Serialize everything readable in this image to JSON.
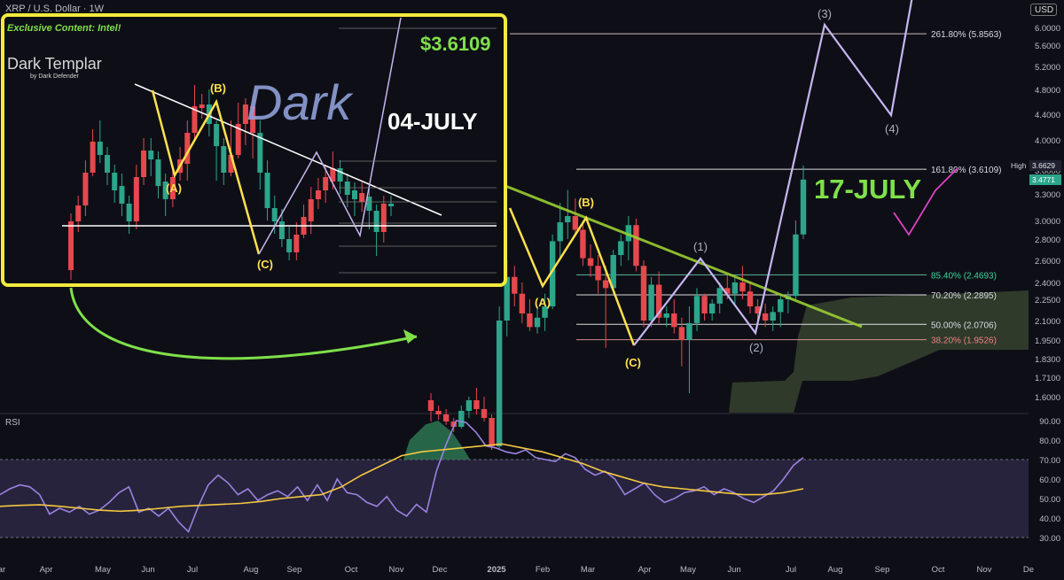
{
  "chart_data": {
    "type": "candlestick",
    "symbol": "XRP / U.S. Dollar · 1W",
    "currency_button": "USD",
    "watermark": {
      "line1": "Exclusive Content: Intel!",
      "line2": "Dark Templar",
      "line3": "by Dark Defender"
    },
    "price_axis": [
      "6.0000",
      "5.6000",
      "5.2000",
      "4.8000",
      "4.4000",
      "4.0000",
      "3.6000",
      "3.3000",
      "3.0000",
      "2.8000",
      "2.6000",
      "2.4000",
      "2.2500",
      "2.1000",
      "1.9500",
      "1.8300",
      "1.7100",
      "1.6000"
    ],
    "time_axis": [
      "ar",
      "Apr",
      "May",
      "Jun",
      "Jul",
      "Aug",
      "Sep",
      "Oct",
      "Nov",
      "Dec",
      "2025",
      "Feb",
      "Mar",
      "Apr",
      "May",
      "Jun",
      "Jul",
      "Aug",
      "Sep",
      "Oct",
      "Nov",
      "De"
    ],
    "high_badge": {
      "label": "High",
      "value": "3.6629"
    },
    "last_price": "3.4771",
    "fib_levels": [
      {
        "label": "261.80% (5.8563)",
        "price": 5.8563
      },
      {
        "label": "161.80% (3.6109)",
        "price": 3.6109
      },
      {
        "label": "85.40% (2.4693)",
        "price": 2.4693
      },
      {
        "label": "70.20% (2.2895)",
        "price": 2.2895
      },
      {
        "label": "50.00% (2.0706)",
        "price": 2.0706
      },
      {
        "label": "38.20% (1.9526)",
        "price": 1.9526
      }
    ],
    "wave_labels": [
      "(A)",
      "(B)",
      "(C)",
      "(1)",
      "(2)",
      "(3)",
      "(4)"
    ],
    "annotations": {
      "target": "17-JULY"
    },
    "candles": [
      {
        "o": 1.58,
        "h": 1.62,
        "l": 1.46,
        "c": 1.52
      },
      {
        "o": 1.52,
        "h": 1.55,
        "l": 1.47,
        "c": 1.5
      },
      {
        "o": 1.5,
        "h": 1.53,
        "l": 1.44,
        "c": 1.46
      },
      {
        "o": 1.46,
        "h": 1.48,
        "l": 1.4,
        "c": 1.43
      },
      {
        "o": 1.43,
        "h": 1.55,
        "l": 1.42,
        "c": 1.52
      },
      {
        "o": 1.52,
        "h": 1.6,
        "l": 1.48,
        "c": 1.58
      },
      {
        "o": 1.58,
        "h": 1.65,
        "l": 1.5,
        "c": 1.53
      },
      {
        "o": 1.53,
        "h": 1.6,
        "l": 1.46,
        "c": 1.48
      },
      {
        "o": 1.48,
        "h": 1.5,
        "l": 1.3,
        "c": 1.32
      },
      {
        "o": 1.32,
        "h": 2.2,
        "l": 1.3,
        "c": 2.1
      },
      {
        "o": 2.1,
        "h": 2.6,
        "l": 1.98,
        "c": 2.45
      },
      {
        "o": 2.45,
        "h": 2.55,
        "l": 2.2,
        "c": 2.3
      },
      {
        "o": 2.3,
        "h": 2.4,
        "l": 2.08,
        "c": 2.15
      },
      {
        "o": 2.15,
        "h": 2.25,
        "l": 2.02,
        "c": 2.05
      },
      {
        "o": 2.05,
        "h": 2.2,
        "l": 2.0,
        "c": 2.12
      },
      {
        "o": 2.12,
        "h": 2.3,
        "l": 2.02,
        "c": 2.2
      },
      {
        "o": 2.2,
        "h": 2.85,
        "l": 2.18,
        "c": 2.78
      },
      {
        "o": 2.78,
        "h": 3.2,
        "l": 2.62,
        "c": 2.98
      },
      {
        "o": 2.98,
        "h": 3.35,
        "l": 2.8,
        "c": 3.05
      },
      {
        "o": 3.05,
        "h": 3.25,
        "l": 2.85,
        "c": 2.9
      },
      {
        "o": 2.9,
        "h": 3.0,
        "l": 2.55,
        "c": 2.62
      },
      {
        "o": 2.62,
        "h": 2.75,
        "l": 2.45,
        "c": 2.55
      },
      {
        "o": 2.55,
        "h": 2.65,
        "l": 2.3,
        "c": 2.42
      },
      {
        "o": 2.42,
        "h": 2.55,
        "l": 1.9,
        "c": 2.35
      },
      {
        "o": 2.35,
        "h": 2.7,
        "l": 2.3,
        "c": 2.65
      },
      {
        "o": 2.65,
        "h": 2.85,
        "l": 2.55,
        "c": 2.78
      },
      {
        "o": 2.78,
        "h": 3.05,
        "l": 2.6,
        "c": 2.95
      },
      {
        "o": 2.95,
        "h": 3.02,
        "l": 2.5,
        "c": 2.55
      },
      {
        "o": 2.55,
        "h": 2.6,
        "l": 2.05,
        "c": 2.1
      },
      {
        "o": 2.1,
        "h": 2.45,
        "l": 2.05,
        "c": 2.38
      },
      {
        "o": 2.38,
        "h": 2.5,
        "l": 2.08,
        "c": 2.12
      },
      {
        "o": 2.12,
        "h": 2.2,
        "l": 2.05,
        "c": 2.15
      },
      {
        "o": 2.15,
        "h": 2.25,
        "l": 2.0,
        "c": 2.05
      },
      {
        "o": 2.05,
        "h": 2.12,
        "l": 1.78,
        "c": 1.95
      },
      {
        "o": 1.95,
        "h": 2.2,
        "l": 1.62,
        "c": 2.08
      },
      {
        "o": 2.08,
        "h": 2.35,
        "l": 2.02,
        "c": 2.28
      },
      {
        "o": 2.28,
        "h": 2.3,
        "l": 2.1,
        "c": 2.15
      },
      {
        "o": 2.15,
        "h": 2.25,
        "l": 2.1,
        "c": 2.22
      },
      {
        "o": 2.22,
        "h": 2.4,
        "l": 2.15,
        "c": 2.35
      },
      {
        "o": 2.35,
        "h": 2.48,
        "l": 2.25,
        "c": 2.3
      },
      {
        "o": 2.3,
        "h": 2.45,
        "l": 2.2,
        "c": 2.4
      },
      {
        "o": 2.4,
        "h": 2.55,
        "l": 2.25,
        "c": 2.32
      },
      {
        "o": 2.32,
        "h": 2.4,
        "l": 2.15,
        "c": 2.2
      },
      {
        "o": 2.2,
        "h": 2.25,
        "l": 2.1,
        "c": 2.15
      },
      {
        "o": 2.15,
        "h": 2.22,
        "l": 2.05,
        "c": 2.1
      },
      {
        "o": 2.1,
        "h": 2.2,
        "l": 2.02,
        "c": 2.16
      },
      {
        "o": 2.16,
        "h": 2.3,
        "l": 2.05,
        "c": 2.25
      },
      {
        "o": 2.25,
        "h": 2.32,
        "l": 2.15,
        "c": 2.28
      },
      {
        "o": 2.28,
        "h": 3.0,
        "l": 2.25,
        "c": 2.85
      },
      {
        "o": 2.85,
        "h": 3.66,
        "l": 2.8,
        "c": 3.48
      }
    ],
    "rsi": {
      "label": "RSI",
      "axis": [
        "90.00",
        "80.00",
        "70.00",
        "60.00",
        "50.00",
        "40.00",
        "30.00"
      ],
      "band": [
        30,
        70
      ],
      "rsi_values": [
        52,
        55,
        57,
        56,
        52,
        42,
        45,
        43,
        46,
        42,
        44,
        48,
        53,
        56,
        43,
        45,
        41,
        45,
        38,
        33,
        46,
        57,
        62,
        58,
        52,
        55,
        49,
        52,
        54,
        51,
        56,
        49,
        57,
        49,
        60,
        53,
        52,
        48,
        46,
        51,
        44,
        41,
        47,
        43,
        64,
        78,
        90,
        89,
        84,
        77,
        76,
        74,
        73,
        75,
        71,
        70,
        69,
        73,
        71,
        65,
        62,
        64,
        60,
        52,
        55,
        58,
        52,
        48,
        50,
        53,
        54,
        56,
        52,
        55,
        53,
        50,
        48,
        51,
        54,
        60,
        67,
        71
      ],
      "ma_values": [
        46,
        46.5,
        46.8,
        46,
        45,
        44,
        43.5,
        44,
        45,
        46,
        46.5,
        47,
        47.5,
        48.5,
        50,
        51,
        52,
        56,
        62,
        67,
        72,
        74,
        75,
        76,
        77,
        78,
        76,
        74,
        71,
        68,
        64,
        61,
        58,
        56,
        55,
        54,
        53,
        52,
        52,
        53,
        55
      ]
    }
  }
}
